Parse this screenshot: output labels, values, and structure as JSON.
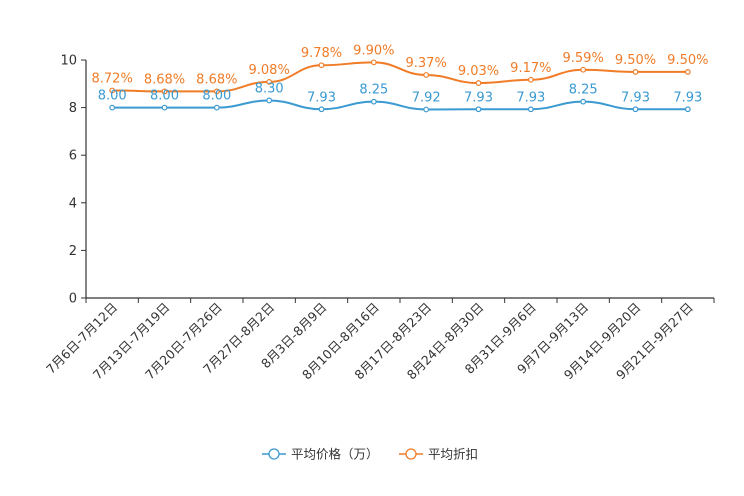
{
  "chart_data": {
    "type": "line",
    "categories": [
      "7月6日-7月12日",
      "7月13日-7月19日",
      "7月20日-7月26日",
      "7月27日-8月2日",
      "8月3日-8月9日",
      "8月10日-8月16日",
      "8月17日-8月23日",
      "8月24日-8月30日",
      "8月31日-9月6日",
      "9月7日-9月13日",
      "9月14日-9月20日",
      "9月21日-9月27日"
    ],
    "series": [
      {
        "name": "平均价格（万）",
        "color": "#3a9ad1",
        "values": [
          8.0,
          8.0,
          8.0,
          8.3,
          7.93,
          8.25,
          7.92,
          7.93,
          7.93,
          8.25,
          7.93,
          7.93
        ],
        "labels": [
          "8.00",
          "8.00",
          "8.00",
          "8.30",
          "7.93",
          "8.25",
          "7.92",
          "7.93",
          "7.93",
          "8.25",
          "7.93",
          "7.93"
        ]
      },
      {
        "name": "平均折扣",
        "color": "#f07c28",
        "values": [
          8.72,
          8.68,
          8.68,
          9.08,
          9.78,
          9.9,
          9.37,
          9.03,
          9.17,
          9.59,
          9.5,
          9.5
        ],
        "labels": [
          "8.72%",
          "8.68%",
          "8.68%",
          "9.08%",
          "9.78%",
          "9.90%",
          "9.37%",
          "9.03%",
          "9.17%",
          "9.59%",
          "9.50%",
          "9.50%"
        ]
      }
    ],
    "yticks": [
      "0",
      "2",
      "4",
      "6",
      "8",
      "10"
    ],
    "ylim": [
      0,
      10
    ],
    "title": "",
    "xlabel": "",
    "ylabel": "",
    "legend_position": "bottom-center",
    "smooth": true,
    "grid": false
  }
}
